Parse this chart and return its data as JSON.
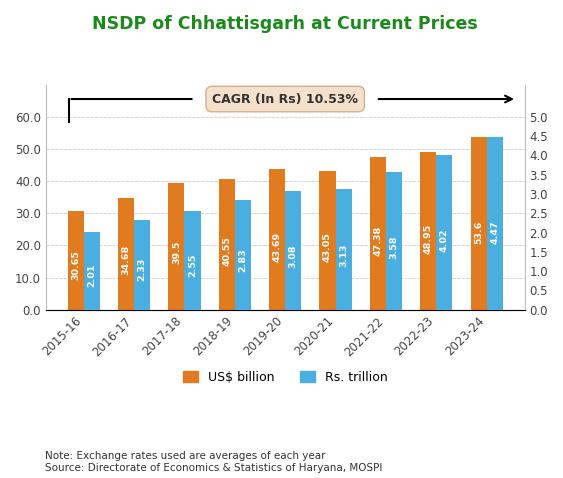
{
  "title": "NSDP of Chhattisgarh at Current Prices",
  "categories": [
    "2015-16",
    "2016-17",
    "2017-18",
    "2018-19",
    "2019-20",
    "2020-21",
    "2021-22",
    "2022-23",
    "2023-24"
  ],
  "usd_values": [
    30.65,
    34.68,
    39.5,
    40.55,
    43.69,
    43.05,
    47.38,
    48.95,
    53.6
  ],
  "rs_values": [
    2.01,
    2.33,
    2.55,
    2.83,
    3.08,
    3.13,
    3.58,
    4.02,
    4.47
  ],
  "usd_color": "#E07B20",
  "rs_color": "#4AAEE0",
  "title_color": "#1a8a1a",
  "left_ylim": [
    0,
    70
  ],
  "right_ylim": [
    0,
    5.833
  ],
  "left_yticks": [
    0.0,
    10.0,
    20.0,
    30.0,
    40.0,
    50.0,
    60.0
  ],
  "right_yticks": [
    0.0,
    0.5,
    1.0,
    1.5,
    2.0,
    2.5,
    3.0,
    3.5,
    4.0,
    4.5,
    5.0
  ],
  "cagr_text": "CAGR (In Rs) 10.53%",
  "note_line1": "Note: Exchange rates used are averages of each year",
  "note_line2": "Source: Directorate of Economics & Statistics of Haryana, MOSPI",
  "legend_usd": "US$ billion",
  "legend_rs": "Rs. trillion",
  "background_color": "#ffffff",
  "bar_width": 0.32,
  "figsize": [
    5.63,
    4.78
  ],
  "dpi": 100
}
